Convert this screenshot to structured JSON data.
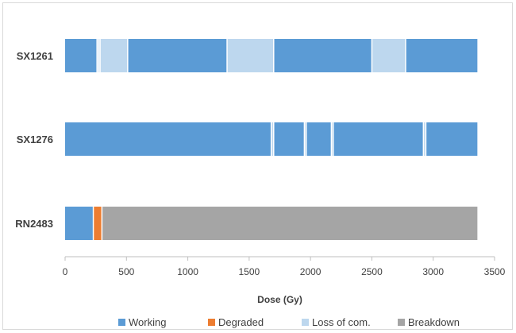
{
  "chart_data": {
    "type": "bar",
    "orientation": "horizontal",
    "stacked": true,
    "categories": [
      "SX1261",
      "SX1276",
      "RN2483"
    ],
    "xlabel": "Dose (Gy)",
    "ylabel": "",
    "xlim": [
      0,
      3500
    ],
    "xticks": [
      0,
      500,
      1000,
      1500,
      2000,
      2500,
      3000,
      3500
    ],
    "grid": false,
    "legend_position": "bottom",
    "states": [
      {
        "name": "Working",
        "color": "#5b9bd5"
      },
      {
        "name": "Degraded",
        "color": "#ed7d31"
      },
      {
        "name": "Loss of com.",
        "color": "#bdd7ee"
      },
      {
        "name": "Breakdown",
        "color": "#a5a5a5"
      }
    ],
    "segments": {
      "SX1261": [
        {
          "state": "Working",
          "from": 0,
          "to": 260
        },
        {
          "state": "Loss of com.",
          "from": 260,
          "to": 275
        },
        {
          "state": "Working",
          "from": 275,
          "to": 285
        },
        {
          "state": "Loss of com.",
          "from": 285,
          "to": 510
        },
        {
          "state": "Working",
          "from": 510,
          "to": 1320
        },
        {
          "state": "Loss of com.",
          "from": 1320,
          "to": 1700
        },
        {
          "state": "Working",
          "from": 1700,
          "to": 2500
        },
        {
          "state": "Loss of com.",
          "from": 2500,
          "to": 2775
        },
        {
          "state": "Working",
          "from": 2775,
          "to": 3360
        }
      ],
      "SX1276": [
        {
          "state": "Working",
          "from": 0,
          "to": 1680
        },
        {
          "state": "Loss of com.",
          "from": 1680,
          "to": 1700
        },
        {
          "state": "Working",
          "from": 1700,
          "to": 1950
        },
        {
          "state": "Loss of com.",
          "from": 1950,
          "to": 1965
        },
        {
          "state": "Working",
          "from": 1965,
          "to": 2170
        },
        {
          "state": "Loss of com.",
          "from": 2170,
          "to": 2185
        },
        {
          "state": "Working",
          "from": 2185,
          "to": 2920
        },
        {
          "state": "Loss of com.",
          "from": 2920,
          "to": 2940
        },
        {
          "state": "Working",
          "from": 2940,
          "to": 3360
        }
      ],
      "RN2483": [
        {
          "state": "Working",
          "from": 0,
          "to": 230
        },
        {
          "state": "Degraded",
          "from": 230,
          "to": 300
        },
        {
          "state": "Breakdown",
          "from": 300,
          "to": 3360
        }
      ]
    }
  }
}
